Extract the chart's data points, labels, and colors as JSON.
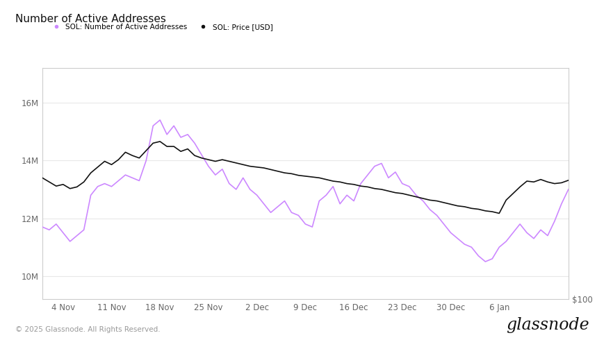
{
  "title": "Number of Active Addresses",
  "legend": [
    "SOL: Number of Active Addresses",
    "SOL: Price [USD]"
  ],
  "legend_colors": [
    "#cc88ff",
    "#111111"
  ],
  "yticks_left": [
    10000000,
    12000000,
    14000000,
    16000000
  ],
  "ytick_labels_left": [
    "10M",
    "12M",
    "14M",
    "16M"
  ],
  "ylim_left": [
    9200000,
    17200000
  ],
  "xtick_labels": [
    "4 Nov",
    "11 Nov",
    "18 Nov",
    "25 Nov",
    "2 Dec",
    "9 Dec",
    "16 Dec",
    "23 Dec",
    "30 Dec",
    "6 Jan"
  ],
  "xtick_positions": [
    3,
    10,
    17,
    24,
    31,
    38,
    45,
    52,
    59,
    66
  ],
  "footer": "© 2025 Glassnode. All Rights Reserved.",
  "watermark": "glassnode",
  "active_addresses": [
    11700000,
    11600000,
    11800000,
    11500000,
    11200000,
    11400000,
    11600000,
    12800000,
    13100000,
    13200000,
    13100000,
    13300000,
    13500000,
    13400000,
    13300000,
    14000000,
    15200000,
    15400000,
    14900000,
    15200000,
    14800000,
    14900000,
    14600000,
    14200000,
    13800000,
    13500000,
    13700000,
    13200000,
    13000000,
    13400000,
    13000000,
    12800000,
    12500000,
    12200000,
    12400000,
    12600000,
    12200000,
    12100000,
    11800000,
    11700000,
    12600000,
    12800000,
    13100000,
    12500000,
    12800000,
    12600000,
    13200000,
    13500000,
    13800000,
    13900000,
    13400000,
    13600000,
    13200000,
    13100000,
    12800000,
    12600000,
    12300000,
    12100000,
    11800000,
    11500000,
    11300000,
    11100000,
    11000000,
    10700000,
    10500000,
    10600000,
    11000000,
    11200000,
    11500000,
    11800000,
    11500000,
    11300000,
    11600000,
    11400000,
    11900000,
    12500000,
    13000000
  ],
  "price_usd": [
    247,
    242,
    237,
    239,
    234,
    236,
    242,
    253,
    260,
    267,
    263,
    269,
    278,
    274,
    271,
    280,
    289,
    291,
    285,
    285,
    279,
    282,
    274,
    271,
    269,
    267,
    269,
    267,
    265,
    263,
    261,
    260,
    259,
    257,
    255,
    253,
    252,
    250,
    249,
    248,
    247,
    245,
    243,
    242,
    240,
    239,
    237,
    236,
    234,
    233,
    231,
    229,
    228,
    226,
    224,
    222,
    220,
    219,
    217,
    215,
    213,
    212,
    210,
    209,
    207,
    206,
    204,
    220,
    228,
    236,
    243,
    242,
    245,
    242,
    240,
    241,
    244
  ],
  "price_ylim": [
    100,
    380
  ],
  "price_ytick_val": 100,
  "background_color": "#ffffff",
  "grid_color": "#e8e8e8",
  "line_color_addr": "#cc88ff",
  "line_color_price": "#111111"
}
